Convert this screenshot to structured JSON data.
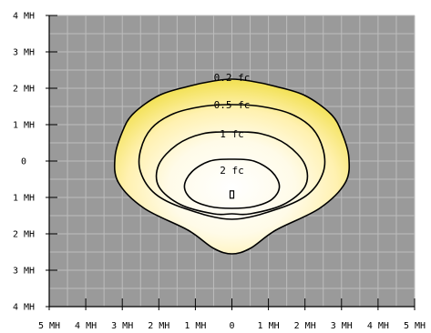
{
  "chart_data": {
    "type": "isolux-contour",
    "title": "",
    "xlabel": "",
    "ylabel": "",
    "xlim": [
      -5,
      5
    ],
    "ylim": [
      -4,
      4
    ],
    "grid": true,
    "x_ticks": [
      {
        "value": -5,
        "label": "5 MH"
      },
      {
        "value": -4,
        "label": "4 MH"
      },
      {
        "value": -3,
        "label": "3 MH"
      },
      {
        "value": -2,
        "label": "2 MH"
      },
      {
        "value": -1,
        "label": "1 MH"
      },
      {
        "value": 0,
        "label": "0"
      },
      {
        "value": 1,
        "label": "1 MH"
      },
      {
        "value": 2,
        "label": "2 MH"
      },
      {
        "value": 3,
        "label": "3 MH"
      },
      {
        "value": 4,
        "label": "4 MH"
      },
      {
        "value": 5,
        "label": "5 MH"
      }
    ],
    "y_ticks": [
      {
        "value": 4,
        "label": "4 MH"
      },
      {
        "value": 3,
        "label": "3 MH"
      },
      {
        "value": 2,
        "label": "2 MH"
      },
      {
        "value": 1,
        "label": "1 MH"
      },
      {
        "value": 0,
        "label": "0"
      },
      {
        "value": -1,
        "label": "1 MH"
      },
      {
        "value": -2,
        "label": "2 MH"
      },
      {
        "value": -3,
        "label": "3 MH"
      },
      {
        "value": -4,
        "label": "4 MH"
      }
    ],
    "contours": [
      {
        "level": "0.2 fc",
        "points": [
          [
            0,
            2.25
          ],
          [
            0.5,
            2.2
          ],
          [
            1.2,
            2.05
          ],
          [
            2.0,
            1.8
          ],
          [
            2.7,
            1.3
          ],
          [
            3.0,
            0.8
          ],
          [
            3.2,
            0.1
          ],
          [
            3.1,
            -0.6
          ],
          [
            2.4,
            -1.3
          ],
          [
            1.2,
            -1.9
          ],
          [
            0.5,
            -2.4
          ],
          [
            0,
            -2.55
          ],
          [
            -0.5,
            -2.4
          ],
          [
            -1.2,
            -1.9
          ],
          [
            -2.4,
            -1.3
          ],
          [
            -3.1,
            -0.6
          ],
          [
            -3.2,
            0.1
          ],
          [
            -3.0,
            0.8
          ],
          [
            -2.7,
            1.3
          ],
          [
            -2.0,
            1.8
          ],
          [
            -1.2,
            2.05
          ],
          [
            -0.5,
            2.2
          ]
        ]
      },
      {
        "level": "0.5 fc",
        "points": [
          [
            0,
            1.55
          ],
          [
            0.8,
            1.5
          ],
          [
            1.6,
            1.3
          ],
          [
            2.2,
            0.9
          ],
          [
            2.5,
            0.3
          ],
          [
            2.5,
            -0.3
          ],
          [
            2.1,
            -0.9
          ],
          [
            1.3,
            -1.3
          ],
          [
            0,
            -1.6
          ],
          [
            -1.3,
            -1.3
          ],
          [
            -2.1,
            -0.9
          ],
          [
            -2.5,
            -0.3
          ],
          [
            -2.5,
            0.3
          ],
          [
            -2.2,
            0.9
          ],
          [
            -1.6,
            1.3
          ],
          [
            -0.8,
            1.5
          ]
        ]
      },
      {
        "level": "1 fc",
        "points": [
          [
            0,
            0.8
          ],
          [
            0.8,
            0.75
          ],
          [
            1.5,
            0.45
          ],
          [
            2.0,
            -0.1
          ],
          [
            2.0,
            -0.7
          ],
          [
            1.4,
            -1.2
          ],
          [
            0.5,
            -1.45
          ],
          [
            0,
            -1.45
          ],
          [
            -0.5,
            -1.45
          ],
          [
            -1.4,
            -1.2
          ],
          [
            -2.0,
            -0.7
          ],
          [
            -2.0,
            -0.1
          ],
          [
            -1.5,
            0.45
          ],
          [
            -0.8,
            0.75
          ]
        ]
      },
      {
        "level": "2 fc",
        "points": [
          [
            0,
            0.05
          ],
          [
            0.6,
            0
          ],
          [
            1.1,
            -0.3
          ],
          [
            1.3,
            -0.7
          ],
          [
            1.1,
            -1.05
          ],
          [
            0.6,
            -1.25
          ],
          [
            0,
            -1.3
          ],
          [
            -0.6,
            -1.25
          ],
          [
            -1.1,
            -1.05
          ],
          [
            -1.3,
            -0.7
          ],
          [
            -1.1,
            -0.3
          ],
          [
            -0.6,
            0
          ]
        ]
      }
    ],
    "labels": [
      {
        "text": "0.2 fc",
        "x": 0,
        "y": 2.3
      },
      {
        "text": "0.5 fc",
        "x": 0,
        "y": 1.55
      },
      {
        "text": "1 fc",
        "x": 0,
        "y": 0.75
      },
      {
        "text": "2 fc",
        "x": 0,
        "y": -0.25
      }
    ],
    "fixture": {
      "x": 0,
      "y": -0.92
    },
    "colors": {
      "background": "#9a9a9a",
      "grid": "#bdbdbd",
      "contour_stroke": "#000000",
      "fill_outer": "#f3e25a",
      "fill_mid": "#fff1b0",
      "fill_inner": "#ffffff"
    }
  }
}
